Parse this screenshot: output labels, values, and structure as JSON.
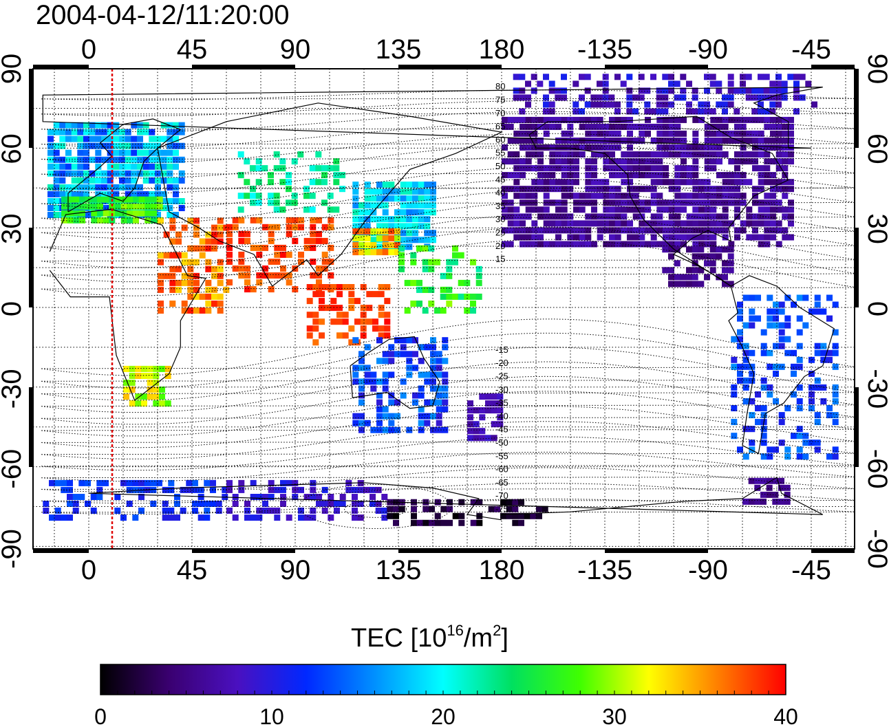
{
  "title": "2004-04-12/11:20:00",
  "map": {
    "x_ticks": [
      "0",
      "45",
      "90",
      "135",
      "180",
      "-135",
      "-90",
      "-45"
    ],
    "y_ticks": [
      "90",
      "60",
      "30",
      "0",
      "-30",
      "-60",
      "-90"
    ],
    "contour_labels": [
      "80",
      "75",
      "70",
      "65",
      "60",
      "55",
      "50",
      "45",
      "40",
      "35",
      "30",
      "25",
      "20",
      "15",
      "-15",
      "-20",
      "-25",
      "-30",
      "-35",
      "-40",
      "-45",
      "-50",
      "-55",
      "-60",
      "-65",
      "-70",
      "-75"
    ],
    "marker_line_color": "#e00000"
  },
  "colorbar": {
    "title_pre": "TEC  [10",
    "title_exp": "16",
    "title_mid": "/m",
    "title_exp2": "2",
    "title_post": "]",
    "ticks": [
      "0",
      "10",
      "20",
      "30",
      "40"
    ],
    "range": [
      0,
      40
    ],
    "colormap": [
      "#000000",
      "#3a0070",
      "#4a10c0",
      "#0028ff",
      "#0090ff",
      "#00ffff",
      "#00e060",
      "#40ff00",
      "#ffff00",
      "#ff8000",
      "#ff0000"
    ]
  }
}
